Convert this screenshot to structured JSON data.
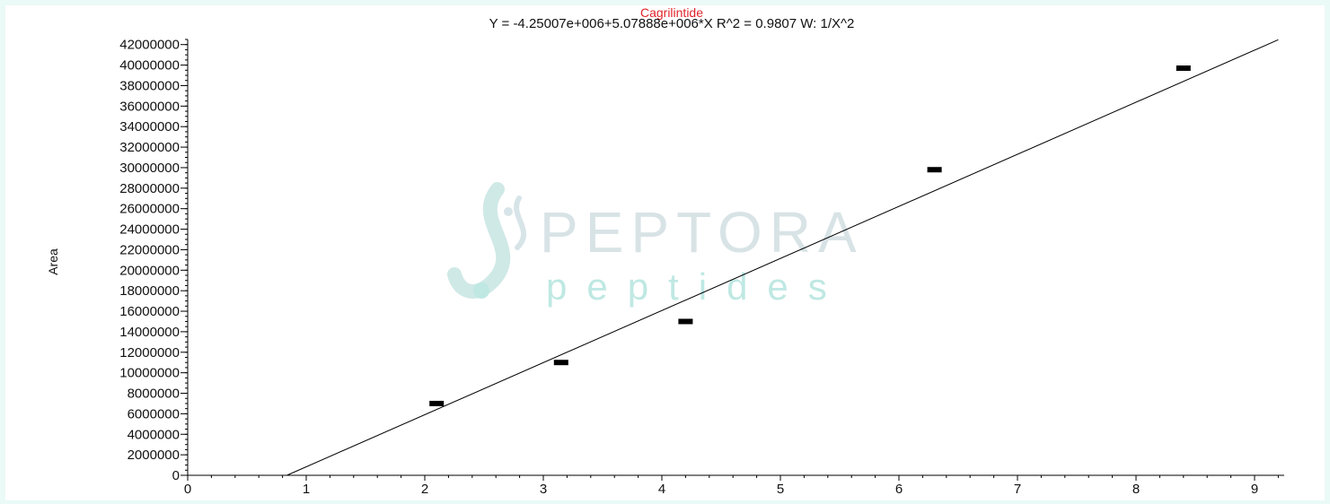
{
  "chart_data": {
    "type": "scatter",
    "title": "Cagrilintide",
    "subtitle": "Y = -4.25007e+006+5.07888e+006*X   R^2 = 0.9807   W: 1/X^2",
    "xlabel": "",
    "ylabel": "Area",
    "xlim": [
      0,
      9.25
    ],
    "ylim": [
      0,
      42500000
    ],
    "x_ticks": [
      0,
      1,
      2,
      3,
      4,
      5,
      6,
      7,
      8,
      9
    ],
    "y_ticks": [
      0,
      2000000,
      4000000,
      6000000,
      8000000,
      10000000,
      12000000,
      14000000,
      16000000,
      18000000,
      20000000,
      22000000,
      24000000,
      26000000,
      28000000,
      30000000,
      32000000,
      34000000,
      36000000,
      38000000,
      40000000,
      42000000
    ],
    "points": [
      {
        "x": 2.1,
        "y": 7000000
      },
      {
        "x": 3.15,
        "y": 11000000
      },
      {
        "x": 4.2,
        "y": 15000000
      },
      {
        "x": 6.3,
        "y": 29800000
      },
      {
        "x": 8.4,
        "y": 39700000
      }
    ],
    "fit": {
      "intercept": -4250070,
      "slope": 5078880,
      "x_range": [
        0.837,
        9.2
      ]
    },
    "grid": false,
    "legend": "none"
  },
  "watermark": {
    "brand": "PEPTORA",
    "tagline": "peptides",
    "colors": {
      "primary": "#d8e3e6",
      "accent": "#bfe8e3"
    }
  }
}
